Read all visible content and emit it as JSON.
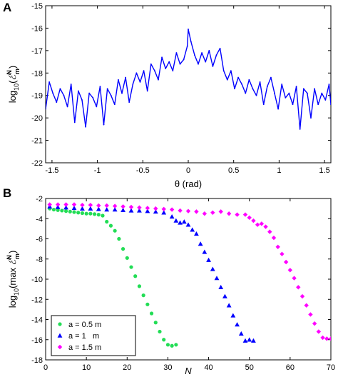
{
  "chart_data": [
    {
      "panel": "A",
      "type": "line",
      "xlabel": "θ (rad)",
      "ylabel": {
        "prefix": "log",
        "sub": "10",
        "open": "(",
        "symbol": "ℰ",
        "sup": "N",
        "subm": "m",
        "close": ")"
      },
      "xlim": [
        -1.57,
        1.57
      ],
      "ylim": [
        -22,
        -15
      ],
      "xticks": [
        -1.5,
        -1,
        -0.5,
        0,
        0.5,
        1,
        1.5
      ],
      "yticks": [
        -22,
        -21,
        -20,
        -19,
        -18,
        -17,
        -16,
        -15
      ],
      "grid": false,
      "series": [
        {
          "color": "#0000ff",
          "x": [
            -1.57,
            -1.53,
            -1.49,
            -1.45,
            -1.41,
            -1.37,
            -1.33,
            -1.29,
            -1.25,
            -1.21,
            -1.17,
            -1.13,
            -1.09,
            -1.05,
            -1.01,
            -0.97,
            -0.93,
            -0.89,
            -0.85,
            -0.81,
            -0.77,
            -0.73,
            -0.69,
            -0.65,
            -0.61,
            -0.57,
            -0.53,
            -0.49,
            -0.45,
            -0.41,
            -0.37,
            -0.33,
            -0.29,
            -0.25,
            -0.21,
            -0.17,
            -0.13,
            -0.09,
            -0.05,
            -0.01,
            0,
            0.03,
            0.07,
            0.11,
            0.15,
            0.19,
            0.23,
            0.27,
            0.31,
            0.35,
            0.39,
            0.43,
            0.47,
            0.51,
            0.55,
            0.59,
            0.63,
            0.67,
            0.71,
            0.75,
            0.79,
            0.83,
            0.87,
            0.91,
            0.95,
            0.99,
            1.03,
            1.07,
            1.11,
            1.15,
            1.19,
            1.23,
            1.27,
            1.31,
            1.35,
            1.39,
            1.43,
            1.47,
            1.51,
            1.55,
            1.57
          ],
          "y": [
            -19.6,
            -18.4,
            -18.9,
            -19.3,
            -18.7,
            -19.0,
            -19.5,
            -18.5,
            -20.2,
            -18.8,
            -19.2,
            -20.4,
            -18.9,
            -19.1,
            -19.5,
            -18.6,
            -20.3,
            -18.7,
            -19.0,
            -19.4,
            -18.3,
            -18.9,
            -18.2,
            -19.3,
            -18.5,
            -18.0,
            -18.4,
            -17.9,
            -18.8,
            -17.6,
            -17.9,
            -18.3,
            -17.3,
            -17.8,
            -17.5,
            -17.9,
            -17.1,
            -17.6,
            -17.4,
            -16.8,
            -16.05,
            -16.6,
            -17.2,
            -17.6,
            -17.1,
            -17.5,
            -17.0,
            -17.7,
            -17.2,
            -16.9,
            -17.9,
            -18.3,
            -17.9,
            -18.7,
            -18.2,
            -18.5,
            -18.9,
            -18.3,
            -18.7,
            -19.0,
            -18.4,
            -19.4,
            -18.6,
            -18.2,
            -18.9,
            -19.6,
            -18.5,
            -19.1,
            -18.9,
            -19.4,
            -18.6,
            -20.5,
            -18.7,
            -18.9,
            -20.0,
            -18.7,
            -19.4,
            -18.9,
            -19.2,
            -18.5,
            -19.4
          ]
        }
      ]
    },
    {
      "panel": "B",
      "type": "scatter",
      "xlabel": "N",
      "ylabel": {
        "prefix": "log",
        "sub": "10",
        "open": "(max ",
        "symbol": "ℰ",
        "sup": "N",
        "subm": "m",
        "close": ")"
      },
      "xlim": [
        0,
        70
      ],
      "ylim": [
        -18,
        -2
      ],
      "xticks": [
        0,
        10,
        20,
        30,
        40,
        50,
        60,
        70
      ],
      "yticks": [
        -18,
        -16,
        -14,
        -12,
        -10,
        -8,
        -6,
        -4,
        -2
      ],
      "grid": false,
      "legend_position": "bottom-left",
      "series": [
        {
          "name": "a = 0.5 m",
          "marker": "circle",
          "color": "#22dd55",
          "x": [
            1,
            2,
            3,
            4,
            5,
            6,
            7,
            8,
            9,
            10,
            11,
            12,
            13,
            14,
            15,
            16,
            17,
            18,
            19,
            20,
            21,
            22,
            23,
            24,
            25,
            26,
            27,
            28,
            29,
            30,
            31,
            32
          ],
          "y": [
            -3.0,
            -3.1,
            -3.15,
            -3.2,
            -3.25,
            -3.3,
            -3.35,
            -3.4,
            -3.45,
            -3.5,
            -3.5,
            -3.55,
            -3.6,
            -3.7,
            -4.3,
            -4.7,
            -5.2,
            -6.0,
            -7.0,
            -7.9,
            -8.8,
            -9.7,
            -10.7,
            -11.6,
            -12.5,
            -13.4,
            -14.3,
            -15.2,
            -16.0,
            -16.5,
            -16.6,
            -16.5
          ]
        },
        {
          "name": "a = 1   m",
          "marker": "triangle",
          "color": "#0000ff",
          "x": [
            1,
            3,
            5,
            7,
            9,
            11,
            13,
            15,
            17,
            19,
            21,
            23,
            25,
            27,
            29,
            31,
            32,
            33,
            34,
            35,
            36,
            37,
            38,
            39,
            40,
            41,
            42,
            43,
            44,
            45,
            46,
            47,
            48,
            49,
            50,
            51
          ],
          "y": [
            -2.8,
            -2.85,
            -2.9,
            -2.95,
            -3.0,
            -3.0,
            -3.05,
            -3.1,
            -3.1,
            -3.15,
            -3.2,
            -3.2,
            -3.25,
            -3.3,
            -3.4,
            -3.8,
            -4.2,
            -4.4,
            -4.3,
            -4.6,
            -5.1,
            -5.5,
            -6.5,
            -7.3,
            -8.1,
            -9.0,
            -9.9,
            -10.8,
            -11.7,
            -12.6,
            -13.6,
            -14.5,
            -15.4,
            -16.1,
            -16.0,
            -16.1
          ]
        },
        {
          "name": "a = 1.5 m",
          "marker": "diamond",
          "color": "#ff00ff",
          "x": [
            1,
            3,
            5,
            7,
            9,
            11,
            13,
            15,
            17,
            19,
            21,
            23,
            25,
            27,
            29,
            31,
            33,
            35,
            37,
            39,
            41,
            43,
            45,
            47,
            49,
            50,
            51,
            52,
            53,
            54,
            55,
            56,
            57,
            58,
            59,
            60,
            61,
            62,
            63,
            64,
            65,
            66,
            67,
            68,
            69,
            70
          ],
          "y": [
            -2.6,
            -2.6,
            -2.6,
            -2.6,
            -2.65,
            -2.65,
            -2.7,
            -2.7,
            -2.75,
            -2.8,
            -2.85,
            -2.9,
            -2.95,
            -3.0,
            -3.05,
            -3.1,
            -3.2,
            -3.25,
            -3.3,
            -3.5,
            -3.4,
            -3.3,
            -3.5,
            -3.6,
            -3.6,
            -3.9,
            -4.2,
            -4.6,
            -4.5,
            -4.8,
            -5.3,
            -5.9,
            -6.8,
            -7.5,
            -8.3,
            -9.1,
            -9.9,
            -10.8,
            -11.7,
            -12.6,
            -13.5,
            -14.4,
            -15.2,
            -15.8,
            -15.9,
            -15.9
          ]
        }
      ]
    }
  ]
}
